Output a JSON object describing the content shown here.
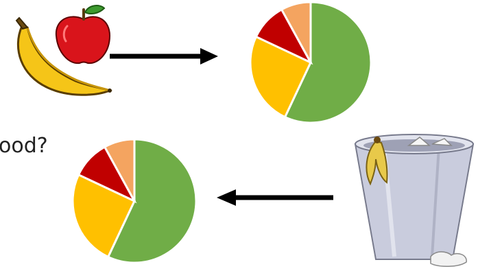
{
  "caption": {
    "partial_text": "ood?"
  },
  "icons": {
    "fruit": "banana-and-apple-icon",
    "trash": "trash-bin-icon",
    "arrow_forward": "arrow-right-icon",
    "arrow_back": "arrow-left-icon"
  },
  "colors": {
    "green": "#70AD47",
    "yellow": "#FFC000",
    "red": "#C00000",
    "orange": "#F4A460",
    "arrow": "#000000"
  },
  "chart_data": [
    {
      "type": "pie",
      "name_note": "",
      "slices": [
        {
          "color": "#70AD47",
          "value": 0.57
        },
        {
          "color": "#FFC000",
          "value": 0.25
        },
        {
          "color": "#C00000",
          "value": 0.1
        },
        {
          "color": "#F4A460",
          "value": 0.08
        }
      ]
    },
    {
      "type": "pie",
      "slices": [
        {
          "color": "#70AD47",
          "value": 0.57
        },
        {
          "color": "#FFC000",
          "value": 0.25
        },
        {
          "color": "#C00000",
          "value": 0.1
        },
        {
          "color": "#F4A460",
          "value": 0.08
        }
      ]
    }
  ]
}
